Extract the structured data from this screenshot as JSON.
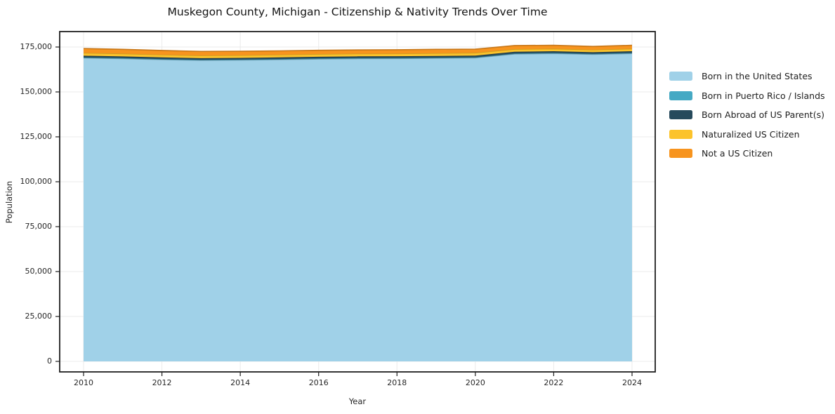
{
  "figure": {
    "background": "#ffffff",
    "grid_color": "#ebebeb",
    "axis_color": "#1f1f1f"
  },
  "chart_data": {
    "type": "area",
    "stacked": true,
    "title": "Muskegon County, Michigan - Citizenship & Nativity Trends Over Time",
    "xlabel": "Year",
    "ylabel": "Population",
    "x": [
      2010,
      2011,
      2012,
      2013,
      2014,
      2015,
      2016,
      2017,
      2018,
      2019,
      2020,
      2021,
      2022,
      2023,
      2024
    ],
    "series": [
      {
        "id": "born-us",
        "name": "Born in the United States",
        "color": "#a0d1e8",
        "values": [
          168900,
          168550,
          168000,
          167600,
          167750,
          168000,
          168350,
          168550,
          168600,
          168750,
          168950,
          171100,
          171400,
          170900,
          171400
        ]
      },
      {
        "id": "puerto-rico-islands",
        "name": "Born in Puerto Rico / Islands",
        "color": "#45a9c4",
        "values": [
          280,
          280,
          270,
          270,
          270,
          280,
          280,
          290,
          290,
          290,
          300,
          300,
          300,
          290,
          300
        ]
      },
      {
        "id": "born-abroad",
        "name": "Born Abroad of US Parent(s)",
        "color": "#264a5c",
        "values": [
          970,
          960,
          950,
          940,
          940,
          950,
          960,
          960,
          960,
          970,
          970,
          960,
          950,
          930,
          940
        ]
      },
      {
        "id": "naturalized",
        "name": "Naturalized US Citizen",
        "color": "#fcc32b",
        "values": [
          1560,
          1530,
          1500,
          1470,
          1460,
          1470,
          1480,
          1490,
          1510,
          1530,
          1550,
          1450,
          1400,
          1380,
          1420
        ]
      },
      {
        "id": "not-citizen",
        "name": "Not a US Citizen",
        "color": "#f7941e",
        "values": [
          2460,
          2400,
          2350,
          2280,
          2200,
          2150,
          2100,
          2080,
          2120,
          2160,
          2030,
          2000,
          1900,
          1800,
          1900
        ]
      }
    ],
    "xticks": [
      2010,
      2012,
      2014,
      2016,
      2018,
      2020,
      2022,
      2024
    ],
    "yticks": [
      0,
      25000,
      50000,
      75000,
      100000,
      125000,
      150000,
      175000
    ],
    "xlim": [
      2009.4,
      2024.6
    ],
    "ylim": [
      -6000,
      184000
    ],
    "grid": true,
    "legend_position": "right"
  }
}
